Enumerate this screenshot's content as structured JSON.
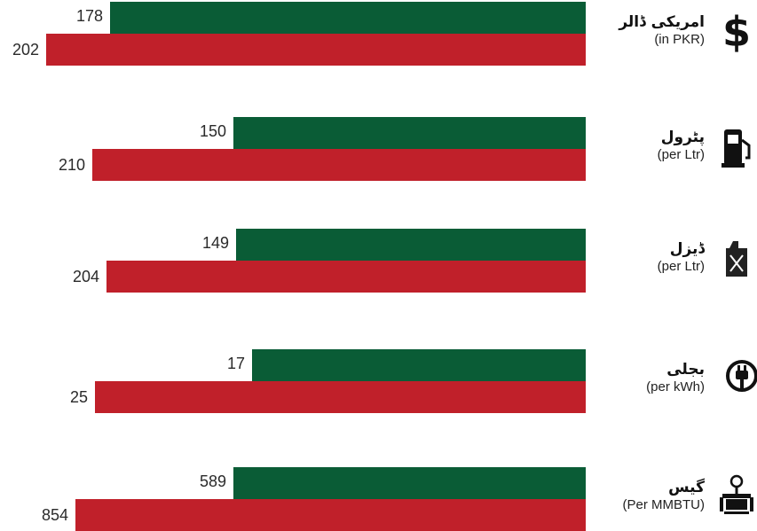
{
  "chart_data": {
    "type": "bar",
    "orientation": "horizontal",
    "categories": [
      {
        "name": "امریکی ڈالر",
        "unit": "(in PKR)",
        "icon": "dollar-icon"
      },
      {
        "name": "پٹرول",
        "unit": "(per Ltr)",
        "icon": "fuel-pump-icon"
      },
      {
        "name": "ڈیزل",
        "unit": "(per Ltr)",
        "icon": "jerrycan-icon"
      },
      {
        "name": "بجلی",
        "unit": "(per kWh)",
        "icon": "power-plug-icon"
      },
      {
        "name": "گیس",
        "unit": "(Per MMBTU)",
        "icon": "gas-valve-icon"
      }
    ],
    "series": [
      {
        "values": [
          178,
          150,
          149,
          17,
          589
        ],
        "color": "#0a5c36"
      },
      {
        "values": [
          202,
          210,
          204,
          25,
          854
        ],
        "color": "#c0202a"
      }
    ],
    "title": "",
    "xlabel": "",
    "ylabel": "",
    "grid": false,
    "legend": "none"
  }
}
